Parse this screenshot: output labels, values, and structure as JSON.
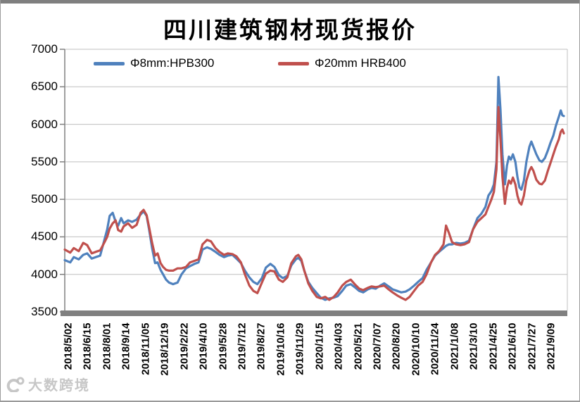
{
  "title": "四川建筑钢材现货报价",
  "watermark": {
    "text": "大数跨境"
  },
  "chart_data": {
    "type": "line",
    "title": "四川建筑钢材现货报价",
    "xlabel": "",
    "ylabel": "",
    "ylim": [
      3500,
      7000
    ],
    "y_ticks": [
      7000,
      6500,
      6000,
      5500,
      5000,
      4500,
      4000,
      3500
    ],
    "grid": "horizontal",
    "legend_position": "top",
    "colors": {
      "grid": "#bfbfbf",
      "axis": "#808080",
      "baseline_bar": "#808080"
    },
    "x_tick_labels": [
      "2018/5/02",
      "2018/6/15",
      "2018/8/01",
      "2018/9/14",
      "2018/11/05",
      "2018/12/19",
      "2019/2/22",
      "2019/4/10",
      "2019/5/28",
      "2019/7/12",
      "2019/8/27",
      "2019/10/16",
      "2019/11/29",
      "2020/1/15",
      "2020/4/03",
      "2020/5/21",
      "2020/7/07",
      "2020/8/20",
      "2020/10/10",
      "2020/11/24",
      "2021/1/08",
      "2021/3/10",
      "2021/4/25",
      "2021/6/10",
      "2021/7/27",
      "2021/9/09"
    ],
    "x_range_fraction_note": "t = 0 at 2018/5/02, t = 1 at series end (after 2021/9/09)",
    "t": [
      0,
      0.011,
      0.018,
      0.028,
      0.037,
      0.045,
      0.054,
      0.062,
      0.071,
      0.079,
      0.085,
      0.09,
      0.096,
      0.102,
      0.107,
      0.113,
      0.118,
      0.127,
      0.135,
      0.144,
      0.152,
      0.158,
      0.164,
      0.169,
      0.175,
      0.181,
      0.186,
      0.192,
      0.197,
      0.203,
      0.209,
      0.217,
      0.226,
      0.234,
      0.243,
      0.251,
      0.26,
      0.268,
      0.276,
      0.285,
      0.293,
      0.302,
      0.31,
      0.319,
      0.327,
      0.336,
      0.344,
      0.353,
      0.361,
      0.37,
      0.378,
      0.386,
      0.395,
      0.403,
      0.412,
      0.42,
      0.429,
      0.437,
      0.446,
      0.454,
      0.463,
      0.468,
      0.474,
      0.48,
      0.488,
      0.496,
      0.505,
      0.513,
      0.522,
      0.53,
      0.539,
      0.547,
      0.556,
      0.564,
      0.573,
      0.581,
      0.59,
      0.598,
      0.607,
      0.615,
      0.623,
      0.632,
      0.64,
      0.649,
      0.657,
      0.666,
      0.674,
      0.683,
      0.691,
      0.7,
      0.708,
      0.717,
      0.725,
      0.734,
      0.742,
      0.75,
      0.759,
      0.764,
      0.77,
      0.776,
      0.784,
      0.793,
      0.801,
      0.81,
      0.818,
      0.827,
      0.835,
      0.843,
      0.849,
      0.855,
      0.86,
      0.865,
      0.869,
      0.873,
      0.877,
      0.882,
      0.886,
      0.89,
      0.894,
      0.898,
      0.903,
      0.907,
      0.911,
      0.915,
      0.92,
      0.925,
      0.931,
      0.935,
      0.939,
      0.945,
      0.951,
      0.956,
      0.962,
      0.968,
      0.973,
      0.979,
      0.984,
      0.99,
      0.994,
      0.997,
      1
    ],
    "series": [
      {
        "name": "Φ8mm:HPB300",
        "color": "#4f81bd",
        "values": [
          4190,
          4160,
          4230,
          4200,
          4260,
          4280,
          4210,
          4230,
          4250,
          4450,
          4600,
          4780,
          4820,
          4700,
          4650,
          4750,
          4680,
          4720,
          4700,
          4730,
          4800,
          4840,
          4780,
          4600,
          4350,
          4150,
          4160,
          4060,
          4000,
          3930,
          3890,
          3870,
          3890,
          4000,
          4080,
          4110,
          4140,
          4160,
          4330,
          4360,
          4340,
          4300,
          4260,
          4230,
          4250,
          4260,
          4210,
          4150,
          4050,
          3960,
          3900,
          3870,
          3950,
          4090,
          4140,
          4100,
          3990,
          3950,
          3980,
          4120,
          4200,
          4220,
          4180,
          4050,
          3900,
          3820,
          3750,
          3690,
          3660,
          3680,
          3690,
          3710,
          3780,
          3850,
          3870,
          3830,
          3780,
          3760,
          3800,
          3820,
          3810,
          3850,
          3880,
          3840,
          3800,
          3780,
          3760,
          3770,
          3800,
          3850,
          3900,
          3950,
          4060,
          4160,
          4250,
          4300,
          4350,
          4380,
          4400,
          4400,
          4420,
          4410,
          4420,
          4450,
          4600,
          4750,
          4810,
          4900,
          5050,
          5110,
          5200,
          5500,
          6630,
          6200,
          5600,
          5200,
          5450,
          5570,
          5530,
          5600,
          5500,
          5300,
          5160,
          5130,
          5250,
          5500,
          5700,
          5770,
          5700,
          5600,
          5520,
          5500,
          5550,
          5650,
          5750,
          5850,
          5980,
          6100,
          6185,
          6120,
          6110
        ]
      },
      {
        "name": "Φ20mm HRB400",
        "color": "#c0504d",
        "values": [
          4330,
          4290,
          4350,
          4310,
          4420,
          4390,
          4280,
          4300,
          4320,
          4420,
          4500,
          4610,
          4680,
          4720,
          4590,
          4570,
          4640,
          4680,
          4620,
          4660,
          4820,
          4860,
          4790,
          4630,
          4420,
          4250,
          4280,
          4150,
          4100,
          4060,
          4050,
          4050,
          4080,
          4080,
          4100,
          4160,
          4180,
          4200,
          4400,
          4460,
          4440,
          4350,
          4300,
          4260,
          4280,
          4270,
          4240,
          4160,
          4000,
          3850,
          3780,
          3750,
          3890,
          4010,
          4050,
          4040,
          3930,
          3900,
          3960,
          4150,
          4240,
          4260,
          4200,
          4050,
          3880,
          3780,
          3700,
          3680,
          3700,
          3660,
          3700,
          3760,
          3850,
          3900,
          3930,
          3870,
          3810,
          3790,
          3820,
          3840,
          3830,
          3840,
          3850,
          3800,
          3760,
          3720,
          3690,
          3660,
          3700,
          3780,
          3850,
          3900,
          4000,
          4160,
          4260,
          4310,
          4400,
          4650,
          4550,
          4430,
          4400,
          4390,
          4400,
          4430,
          4600,
          4700,
          4750,
          4800,
          4900,
          5000,
          5100,
          5400,
          6230,
          5800,
          5300,
          4940,
          5150,
          5250,
          5210,
          5290,
          5200,
          5050,
          4960,
          4930,
          5050,
          5250,
          5380,
          5430,
          5380,
          5260,
          5210,
          5200,
          5250,
          5380,
          5480,
          5600,
          5700,
          5800,
          5900,
          5930,
          5880
        ]
      }
    ]
  }
}
